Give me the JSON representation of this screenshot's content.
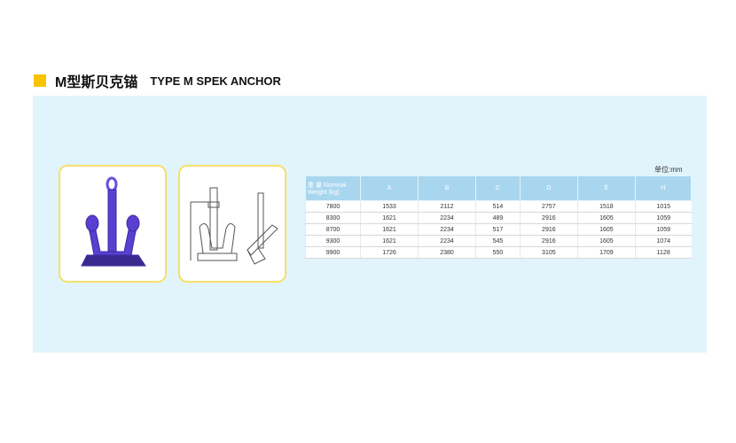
{
  "title": {
    "cn": "M型斯贝克锚",
    "en": "TYPE M SPEK ANCHOR",
    "accent": "#f8c400"
  },
  "unit": "单位:mm",
  "table": {
    "headers": [
      "重 量 Nominal Weight (kg)",
      "A",
      "B",
      "C",
      "D",
      "E",
      "H"
    ],
    "rows": [
      [
        "7800",
        "1533",
        "2112",
        "514",
        "2757",
        "1518",
        "1015"
      ],
      [
        "8300",
        "1621",
        "2234",
        "489",
        "2916",
        "1605",
        "1059"
      ],
      [
        "8700",
        "1621",
        "2234",
        "517",
        "2916",
        "1605",
        "1059"
      ],
      [
        "9300",
        "1621",
        "2234",
        "545",
        "2916",
        "1605",
        "1074"
      ],
      [
        "9900",
        "1726",
        "2380",
        "550",
        "3105",
        "1709",
        "1128"
      ]
    ]
  }
}
